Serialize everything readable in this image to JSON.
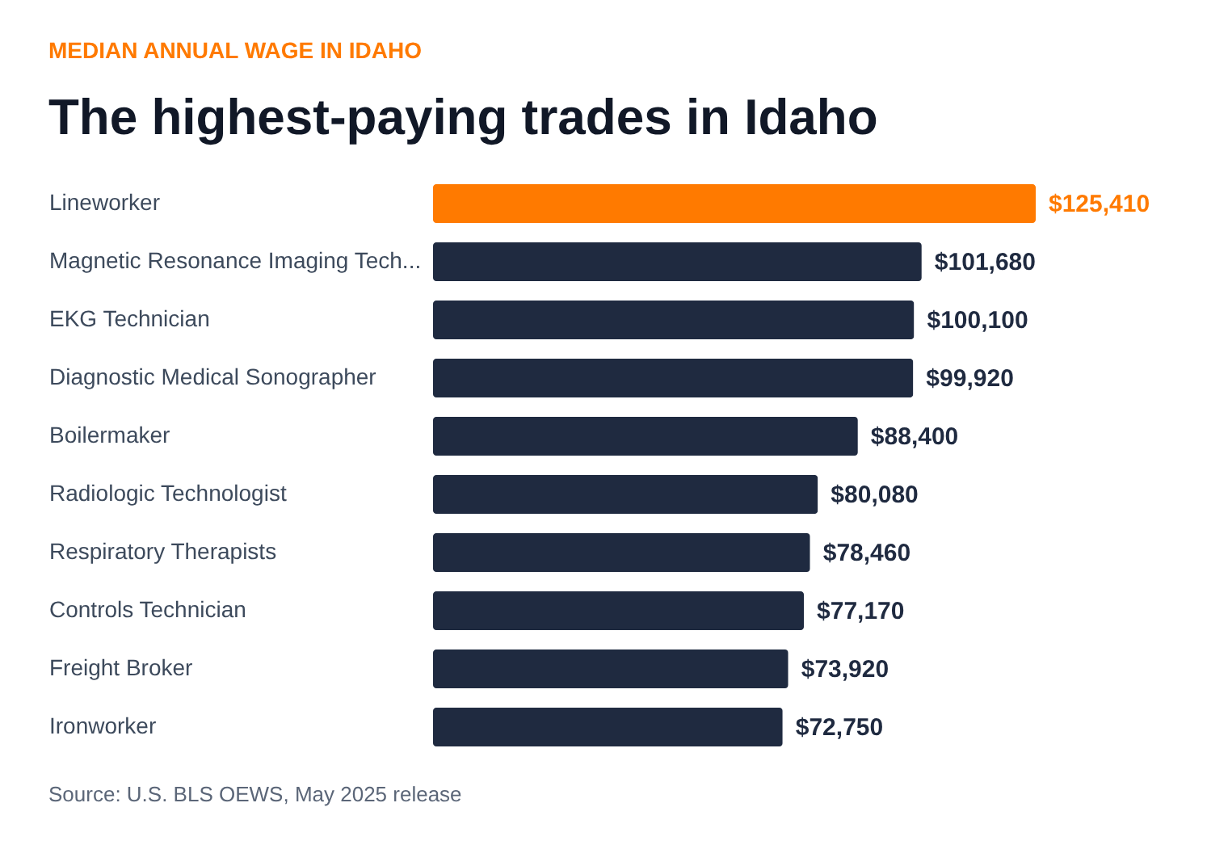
{
  "chart_data": {
    "type": "bar",
    "orientation": "horizontal",
    "title": "The highest-paying trades in Idaho",
    "subtitle": "MEDIAN ANNUAL WAGE IN IDAHO",
    "categories": [
      "Lineworker",
      "Magnetic Resonance Imaging Tech...",
      "EKG Technician",
      "Diagnostic Medical Sonographer",
      "Boilermaker",
      "Radiologic Technologist",
      "Respiratory Therapists",
      "Controls Technician",
      "Freight Broker",
      "Ironworker"
    ],
    "values": [
      125410,
      101680,
      100100,
      99920,
      88400,
      80080,
      78460,
      77170,
      73920,
      72750
    ],
    "value_labels": [
      "$125,410",
      "$101,680",
      "$100,100",
      "$99,920",
      "$88,400",
      "$80,080",
      "$78,460",
      "$77,170",
      "$73,920",
      "$72,750"
    ],
    "colors": [
      "#ff7a00",
      "#1f2a40",
      "#1f2a40",
      "#1f2a40",
      "#1f2a40",
      "#1f2a40",
      "#1f2a40",
      "#1f2a40",
      "#1f2a40",
      "#1f2a40"
    ],
    "annotations": [
      "Source: U.S. BLS OEWS, May 2025 release"
    ],
    "grid": false
  }
}
